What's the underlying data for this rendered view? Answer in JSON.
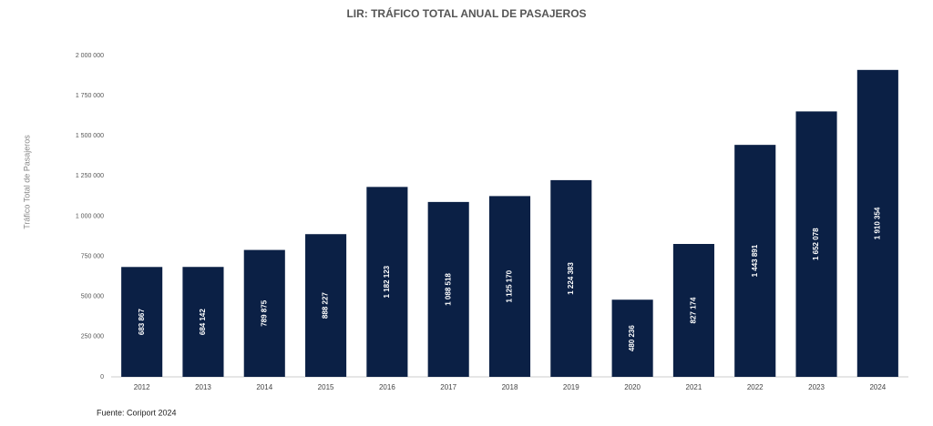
{
  "chart_data": {
    "type": "bar",
    "title": "LIR: TRÁFICO TOTAL ANUAL DE PASAJEROS",
    "y_label": "Tráfico Total de Pasajeros",
    "source": "Fuente: Coriport 2024",
    "categories": [
      "2012",
      "2013",
      "2014",
      "2015",
      "2016",
      "2017",
      "2018",
      "2019",
      "2020",
      "2021",
      "2022",
      "2023",
      "2024"
    ],
    "values": [
      683867,
      684142,
      789875,
      888227,
      1182123,
      1088518,
      1125170,
      1224383,
      480236,
      827174,
      1443891,
      1652078,
      1910354
    ],
    "value_labels": [
      "683 867",
      "684 142",
      "789 875",
      "888 227",
      "1 182 123",
      "1 088 518",
      "1 125 170",
      "1 224 383",
      "480 236",
      "827 174",
      "1 443 891",
      "1 652 078",
      "1 910 354"
    ],
    "color": "#0b2045",
    "ylim": [
      0,
      2000000
    ],
    "yticks": [
      0,
      {
        "value": 250000,
        "label": "250 000"
      },
      {
        "value": 500000,
        "label": "500 000"
      },
      {
        "value": 750000,
        "label": "750 000"
      },
      {
        "value": 1000000,
        "label": "1 000 000"
      },
      {
        "value": 1250000,
        "label": "1 250 000"
      },
      {
        "value": 1500000,
        "label": "1 500 000"
      },
      {
        "value": 1750000,
        "label": "1 750 000"
      },
      {
        "value": 2000000,
        "label": "2 000 000"
      }
    ],
    "grid": false
  }
}
